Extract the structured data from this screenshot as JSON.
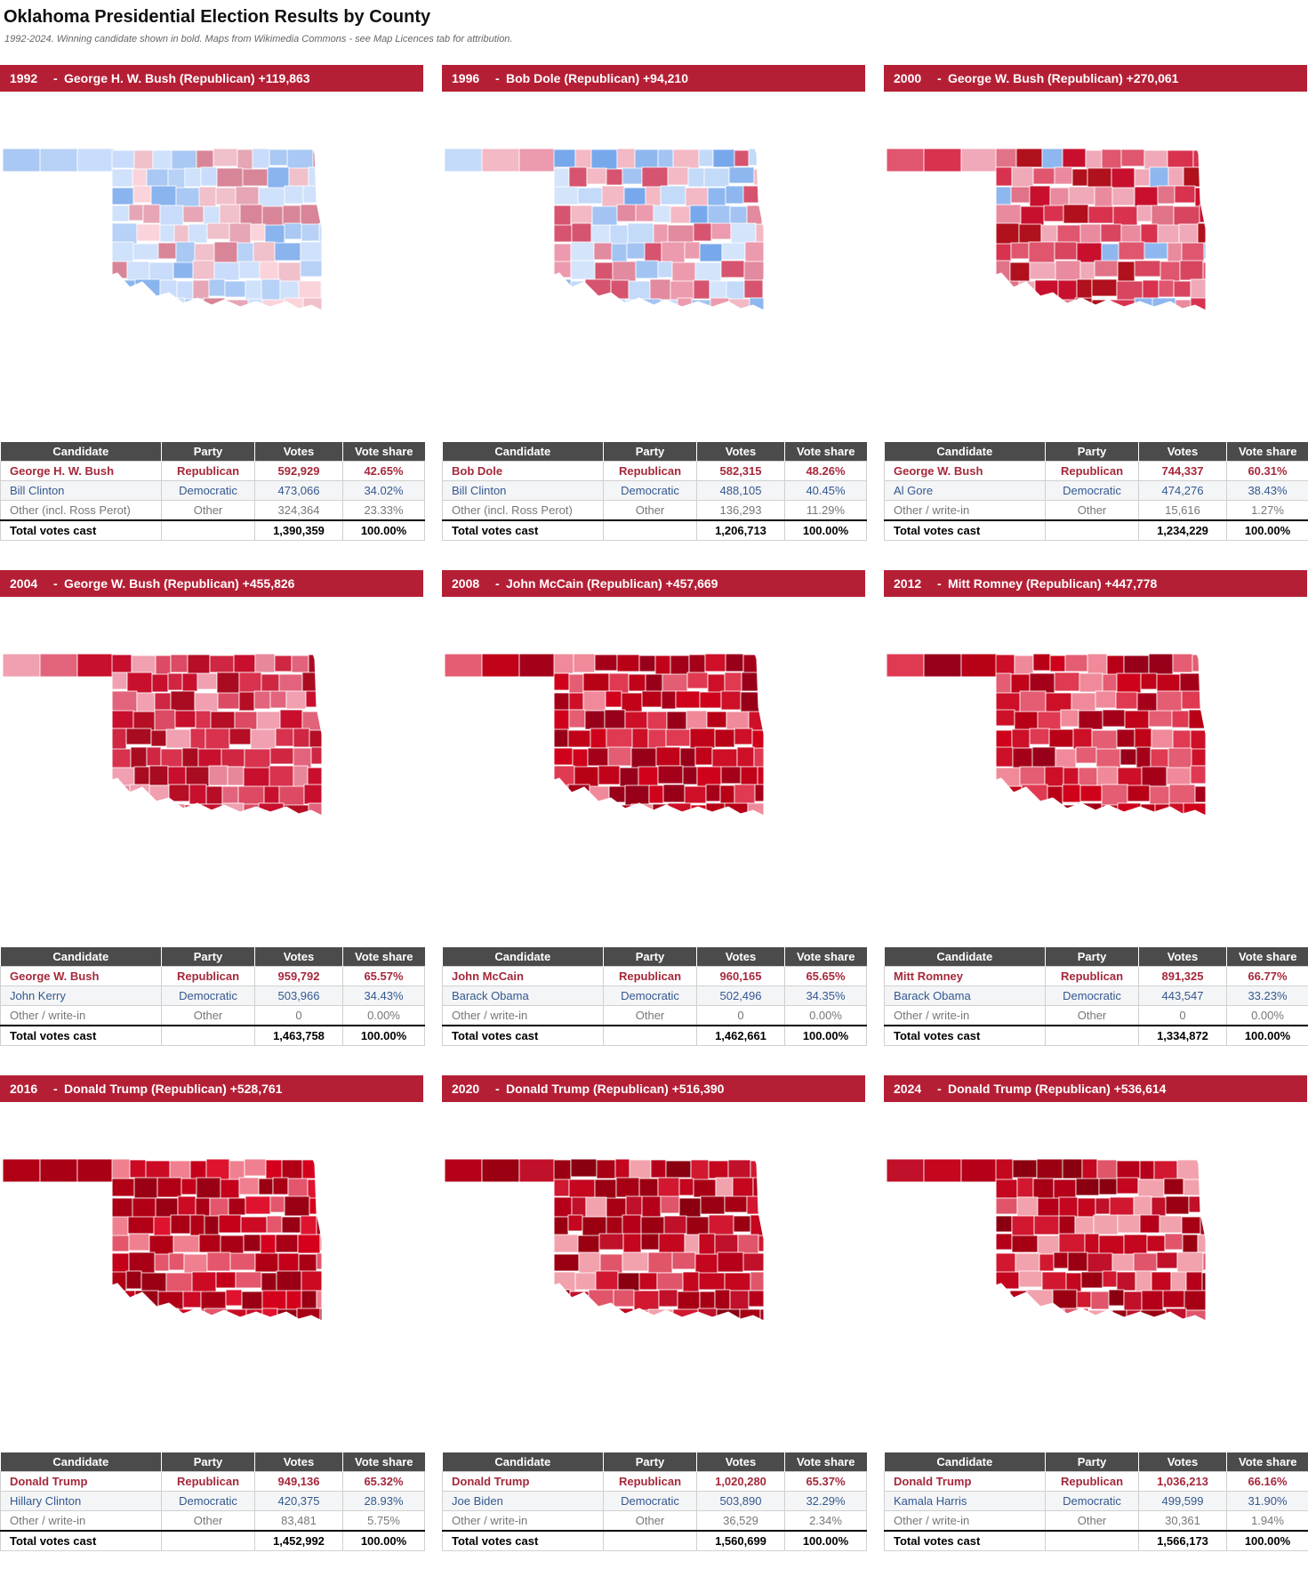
{
  "header": {
    "title": "Oklahoma Presidential Election Results by County",
    "subtitle": "1992-2024. Winning candidate shown in bold. Maps from Wikimedia Commons - see Map Licences tab for attribution."
  },
  "colors": {
    "banner": "#b51f35",
    "table_header": "#4b4b4b",
    "republican_text": "#a5283b",
    "democratic_text": "#33588f"
  },
  "columns": [
    "Candidate",
    "Party",
    "Votes",
    "Vote share"
  ],
  "elections": [
    {
      "year": "1992",
      "banner": "George H. W. Bush (Republican) +119,863",
      "map_lean": "blue",
      "rows": [
        {
          "type": "rep",
          "candidate": "George H. W. Bush",
          "party": "Republican",
          "votes": "592,929",
          "share": "42.65%"
        },
        {
          "type": "dem",
          "candidate": "Bill Clinton",
          "party": "Democratic",
          "votes": "473,066",
          "share": "34.02%"
        },
        {
          "type": "oth",
          "candidate": "Other (incl. Ross Perot)",
          "party": "Other",
          "votes": "324,364",
          "share": "23.33%"
        },
        {
          "type": "tot",
          "candidate": "Total votes cast",
          "party": "",
          "votes": "1,390,359",
          "share": "100.00%"
        }
      ]
    },
    {
      "year": "1996",
      "banner": "Bob Dole (Republican) +94,210",
      "map_lean": "blue2",
      "rows": [
        {
          "type": "rep",
          "candidate": "Bob Dole",
          "party": "Republican",
          "votes": "582,315",
          "share": "48.26%"
        },
        {
          "type": "dem",
          "candidate": "Bill Clinton",
          "party": "Democratic",
          "votes": "488,105",
          "share": "40.45%"
        },
        {
          "type": "oth",
          "candidate": "Other (incl. Ross Perot)",
          "party": "Other",
          "votes": "136,293",
          "share": "11.29%"
        },
        {
          "type": "tot",
          "candidate": "Total votes cast",
          "party": "",
          "votes": "1,206,713",
          "share": "100.00%"
        }
      ]
    },
    {
      "year": "2000",
      "banner": "George W. Bush (Republican) +270,061",
      "map_lean": "mixed",
      "rows": [
        {
          "type": "rep",
          "candidate": "George W. Bush",
          "party": "Republican",
          "votes": "744,337",
          "share": "60.31%"
        },
        {
          "type": "dem",
          "candidate": "Al Gore",
          "party": "Democratic",
          "votes": "474,276",
          "share": "38.43%"
        },
        {
          "type": "oth",
          "candidate": "Other / write-in",
          "party": "Other",
          "votes": "15,616",
          "share": "1.27%"
        },
        {
          "type": "tot",
          "candidate": "Total votes cast",
          "party": "",
          "votes": "1,234,229",
          "share": "100.00%"
        }
      ]
    },
    {
      "year": "2004",
      "banner": "George W. Bush (Republican) +455,826",
      "map_lean": "red1",
      "rows": [
        {
          "type": "rep",
          "candidate": "George W. Bush",
          "party": "Republican",
          "votes": "959,792",
          "share": "65.57%"
        },
        {
          "type": "dem",
          "candidate": "John Kerry",
          "party": "Democratic",
          "votes": "503,966",
          "share": "34.43%"
        },
        {
          "type": "oth",
          "candidate": "Other / write-in",
          "party": "Other",
          "votes": "0",
          "share": "0.00%"
        },
        {
          "type": "tot",
          "candidate": "Total votes cast",
          "party": "",
          "votes": "1,463,758",
          "share": "100.00%"
        }
      ]
    },
    {
      "year": "2008",
      "banner": "John McCain (Republican) +457,669",
      "map_lean": "red2",
      "rows": [
        {
          "type": "rep",
          "candidate": "John McCain",
          "party": "Republican",
          "votes": "960,165",
          "share": "65.65%"
        },
        {
          "type": "dem",
          "candidate": "Barack Obama",
          "party": "Democratic",
          "votes": "502,496",
          "share": "34.35%"
        },
        {
          "type": "oth",
          "candidate": "Other / write-in",
          "party": "Other",
          "votes": "0",
          "share": "0.00%"
        },
        {
          "type": "tot",
          "candidate": "Total votes cast",
          "party": "",
          "votes": "1,462,661",
          "share": "100.00%"
        }
      ]
    },
    {
      "year": "2012",
      "banner": "Mitt Romney (Republican) +447,778",
      "map_lean": "red2",
      "rows": [
        {
          "type": "rep",
          "candidate": "Mitt Romney",
          "party": "Republican",
          "votes": "891,325",
          "share": "66.77%"
        },
        {
          "type": "dem",
          "candidate": "Barack Obama",
          "party": "Democratic",
          "votes": "443,547",
          "share": "33.23%"
        },
        {
          "type": "oth",
          "candidate": "Other / write-in",
          "party": "Other",
          "votes": "0",
          "share": "0.00%"
        },
        {
          "type": "tot",
          "candidate": "Total votes cast",
          "party": "",
          "votes": "1,334,872",
          "share": "100.00%"
        }
      ]
    },
    {
      "year": "2016",
      "banner": "Donald Trump (Republican) +528,761",
      "map_lean": "red3",
      "rows": [
        {
          "type": "rep",
          "candidate": "Donald Trump",
          "party": "Republican",
          "votes": "949,136",
          "share": "65.32%"
        },
        {
          "type": "dem",
          "candidate": "Hillary Clinton",
          "party": "Democratic",
          "votes": "420,375",
          "share": "28.93%"
        },
        {
          "type": "oth",
          "candidate": "Other / write-in",
          "party": "Other",
          "votes": "83,481",
          "share": "5.75%"
        },
        {
          "type": "tot",
          "candidate": "Total votes cast",
          "party": "",
          "votes": "1,452,992",
          "share": "100.00%"
        }
      ]
    },
    {
      "year": "2020",
      "banner": "Donald Trump (Republican) +516,390",
      "map_lean": "red4",
      "rows": [
        {
          "type": "rep",
          "candidate": "Donald Trump",
          "party": "Republican",
          "votes": "1,020,280",
          "share": "65.37%"
        },
        {
          "type": "dem",
          "candidate": "Joe Biden",
          "party": "Democratic",
          "votes": "503,890",
          "share": "32.29%"
        },
        {
          "type": "oth",
          "candidate": "Other / write-in",
          "party": "Other",
          "votes": "36,529",
          "share": "2.34%"
        },
        {
          "type": "tot",
          "candidate": "Total votes cast",
          "party": "",
          "votes": "1,560,699",
          "share": "100.00%"
        }
      ]
    },
    {
      "year": "2024",
      "banner": "Donald Trump (Republican) +536,614",
      "map_lean": "red4",
      "rows": [
        {
          "type": "rep",
          "candidate": "Donald Trump",
          "party": "Republican",
          "votes": "1,036,213",
          "share": "66.16%"
        },
        {
          "type": "dem",
          "candidate": "Kamala Harris",
          "party": "Democratic",
          "votes": "499,599",
          "share": "31.90%"
        },
        {
          "type": "oth",
          "candidate": "Other / write-in",
          "party": "Other",
          "votes": "30,361",
          "share": "1.94%"
        },
        {
          "type": "tot",
          "candidate": "Total votes cast",
          "party": "",
          "votes": "1,566,173",
          "share": "100.00%"
        }
      ]
    }
  ]
}
